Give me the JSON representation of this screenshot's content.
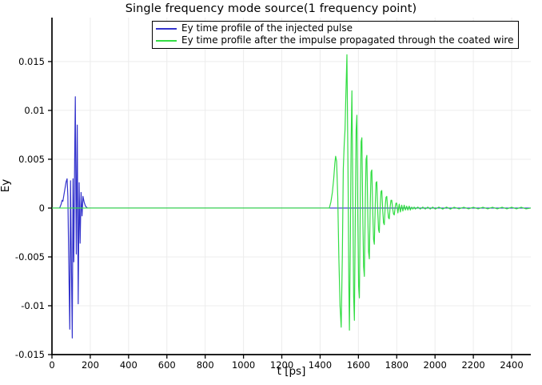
{
  "title": "Single frequency mode source(1 frequency point)",
  "chart_data": {
    "type": "line",
    "title": "Single frequency mode source(1 frequency point)",
    "xlabel": "t [ps]",
    "ylabel": "Ey",
    "xlim": [
      0,
      2500
    ],
    "ylim": [
      -0.015,
      0.0195
    ],
    "grid": true,
    "grid_color": "#ececec",
    "axis_color": "#000000",
    "legend_position": "top-center-inside",
    "xticks": [
      0,
      200,
      400,
      600,
      800,
      1000,
      1200,
      1400,
      1600,
      1800,
      2000,
      2200,
      2400
    ],
    "yticks": [
      -0.015,
      -0.01,
      -0.005,
      0,
      0.005,
      0.01,
      0.015
    ],
    "ytick_labels": [
      "-0.015",
      "-0.01",
      "-0.005",
      "0",
      "0.005",
      "0.01",
      "0.015"
    ],
    "series": [
      {
        "name": "Ey time profile of the injected pulse",
        "color": "#3333cc",
        "points": [
          [
            0,
            0
          ],
          [
            40,
            0
          ],
          [
            48,
            0.0004
          ],
          [
            53,
            0.0008
          ],
          [
            57,
            0.0007
          ],
          [
            62,
            0.0013
          ],
          [
            68,
            0.002
          ],
          [
            74,
            0.0027
          ],
          [
            79,
            0.003
          ],
          [
            83,
            0.0012
          ],
          [
            87,
            -0.0045
          ],
          [
            93,
            -0.0124
          ],
          [
            97,
            0.0028
          ],
          [
            101,
            -0.005
          ],
          [
            106,
            -0.0133
          ],
          [
            110,
            0.003
          ],
          [
            114,
            -0.0055
          ],
          [
            119,
            0.006
          ],
          [
            122,
            0.0114
          ],
          [
            127,
            -0.0047
          ],
          [
            132,
            0.0085
          ],
          [
            137,
            -0.0098
          ],
          [
            142,
            0.0026
          ],
          [
            147,
            -0.0036
          ],
          [
            152,
            0.0016
          ],
          [
            157,
            -0.0008
          ],
          [
            162,
            0.0012
          ],
          [
            168,
            0.0006
          ],
          [
            175,
            0.0002
          ],
          [
            185,
            0
          ],
          [
            2500,
            0
          ]
        ]
      },
      {
        "name": "Ey time profile after the impulse propagated through the coated wire",
        "color": "#33dd44",
        "points": [
          [
            0,
            0
          ],
          [
            1400,
            0
          ],
          [
            1448,
            0
          ],
          [
            1456,
            0.0006
          ],
          [
            1464,
            0.0016
          ],
          [
            1471,
            0.003
          ],
          [
            1477,
            0.0046
          ],
          [
            1481,
            0.0053
          ],
          [
            1486,
            0.0048
          ],
          [
            1492,
            0.0012
          ],
          [
            1498,
            -0.0052
          ],
          [
            1504,
            -0.01
          ],
          [
            1510,
            -0.0122
          ],
          [
            1516,
            -0.005
          ],
          [
            1521,
            0.004
          ],
          [
            1526,
            0.0066
          ],
          [
            1530,
            0.008
          ],
          [
            1535,
            0.012
          ],
          [
            1540,
            0.0157
          ],
          [
            1546,
            0.003
          ],
          [
            1550,
            -0.008
          ],
          [
            1553,
            -0.0125
          ],
          [
            1558,
            -0.003
          ],
          [
            1562,
            0.007
          ],
          [
            1566,
            0.012
          ],
          [
            1571,
            0.001
          ],
          [
            1575,
            -0.009
          ],
          [
            1579,
            -0.0115
          ],
          [
            1584,
            0.0
          ],
          [
            1588,
            0.008
          ],
          [
            1592,
            0.0095
          ],
          [
            1597,
            -0.001
          ],
          [
            1601,
            -0.008
          ],
          [
            1605,
            -0.0092
          ],
          [
            1610,
            0.001
          ],
          [
            1614,
            0.0068
          ],
          [
            1618,
            0.0072
          ],
          [
            1623,
            -0.001
          ],
          [
            1627,
            -0.006
          ],
          [
            1631,
            -0.007
          ],
          [
            1636,
            0.0008
          ],
          [
            1640,
            0.005
          ],
          [
            1644,
            0.0054
          ],
          [
            1649,
            -0.0008
          ],
          [
            1653,
            -0.0045
          ],
          [
            1657,
            -0.0052
          ],
          [
            1662,
            0.0006
          ],
          [
            1666,
            0.0037
          ],
          [
            1670,
            0.0039
          ],
          [
            1675,
            -0.0005
          ],
          [
            1679,
            -0.0032
          ],
          [
            1683,
            -0.0037
          ],
          [
            1688,
            0.0004
          ],
          [
            1692,
            0.0026
          ],
          [
            1696,
            0.0027
          ],
          [
            1701,
            -0.0004
          ],
          [
            1705,
            -0.0022
          ],
          [
            1709,
            -0.0025
          ],
          [
            1714,
            0.0003
          ],
          [
            1718,
            0.0017
          ],
          [
            1722,
            0.0018
          ],
          [
            1727,
            -0.0003
          ],
          [
            1731,
            -0.0015
          ],
          [
            1735,
            -0.0017
          ],
          [
            1740,
            0.0002
          ],
          [
            1744,
            0.0011
          ],
          [
            1748,
            0.0012
          ],
          [
            1753,
            -0.0002
          ],
          [
            1757,
            -0.001
          ],
          [
            1761,
            -0.0011
          ],
          [
            1766,
            0.0002
          ],
          [
            1770,
            0.0008
          ],
          [
            1774,
            0.0008
          ],
          [
            1779,
            -0.0001
          ],
          [
            1783,
            -0.0006
          ],
          [
            1787,
            -0.0007
          ],
          [
            1792,
            0.0001
          ],
          [
            1796,
            0.0005
          ],
          [
            1800,
            0.0005
          ],
          [
            1806,
            -0.0005
          ],
          [
            1813,
            0.0004
          ],
          [
            1819,
            -0.0004
          ],
          [
            1826,
            0.0003
          ],
          [
            1832,
            -0.0003
          ],
          [
            1839,
            0.0003
          ],
          [
            1845,
            -0.0002
          ],
          [
            1852,
            0.0002
          ],
          [
            1858,
            -0.0002
          ],
          [
            1865,
            0.0002
          ],
          [
            1871,
            -0.0002
          ],
          [
            1878,
            0.0001
          ],
          [
            1884,
            -0.0001
          ],
          [
            1891,
            0.0001
          ],
          [
            1897,
            -0.0001
          ],
          [
            1910,
            0.0001
          ],
          [
            1923,
            -0.0001
          ],
          [
            1936,
            0.0001
          ],
          [
            1949,
            -0.0001
          ],
          [
            1962,
            0.0001
          ],
          [
            1975,
            -0.0001
          ],
          [
            1988,
            0.0001
          ],
          [
            2001,
            -0.0001
          ],
          [
            2020,
            0.0001
          ],
          [
            2040,
            -0.0001
          ],
          [
            2060,
            0.0001
          ],
          [
            2080,
            -0.0001
          ],
          [
            2100,
            8e-05
          ],
          [
            2125,
            -8e-05
          ],
          [
            2150,
            8e-05
          ],
          [
            2175,
            -8e-05
          ],
          [
            2200,
            8e-05
          ],
          [
            2225,
            -8e-05
          ],
          [
            2250,
            8e-05
          ],
          [
            2275,
            -8e-05
          ],
          [
            2300,
            8e-05
          ],
          [
            2325,
            -8e-05
          ],
          [
            2350,
            8e-05
          ],
          [
            2375,
            -8e-05
          ],
          [
            2400,
            8e-05
          ],
          [
            2425,
            -8e-05
          ],
          [
            2450,
            8e-05
          ],
          [
            2475,
            -8e-05
          ],
          [
            2500,
            0
          ]
        ]
      }
    ]
  }
}
